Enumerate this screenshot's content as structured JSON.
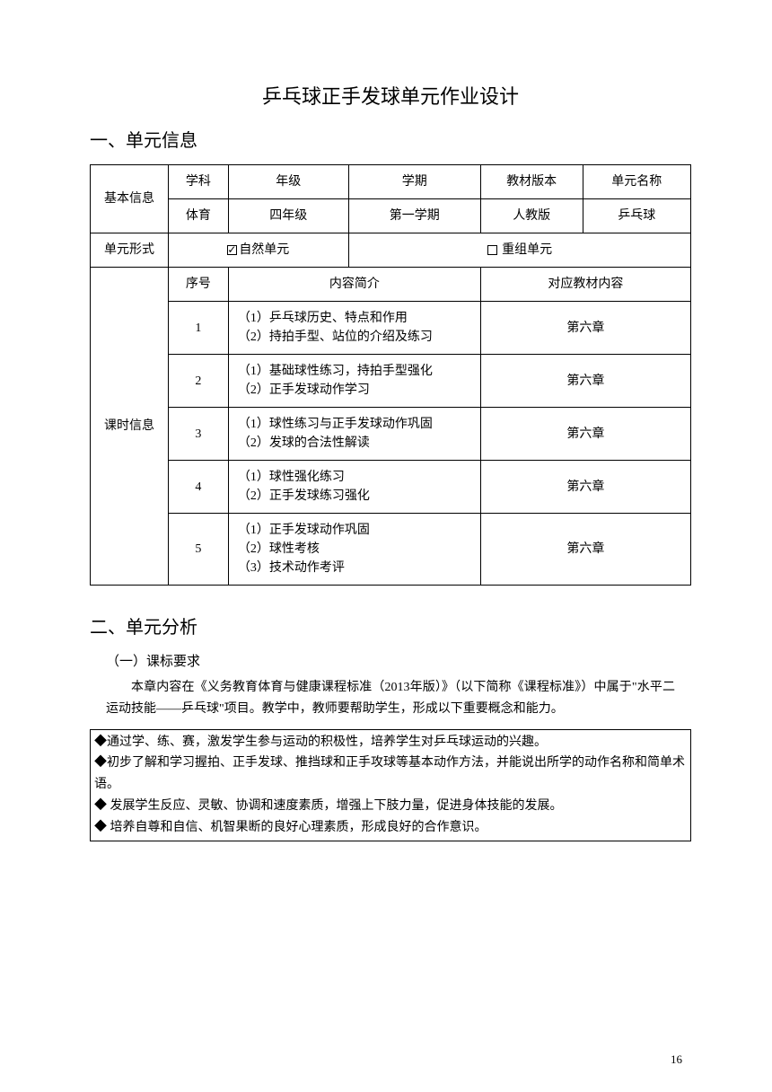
{
  "title": "乒乓球正手发球单元作业设计",
  "section1_heading": "一、单元信息",
  "section2_heading": "二、单元分析",
  "subsection2_1": "（一）课标要求",
  "basic_info": {
    "row_label": "基本信息",
    "headers": {
      "subject": "学科",
      "grade": "年级",
      "term": "学期",
      "textbook": "教材版本",
      "unit_name": "单元名称"
    },
    "values": {
      "subject": "体育",
      "grade": "四年级",
      "term": "第一学期",
      "textbook": "人教版",
      "unit_name": "乒乓球"
    }
  },
  "unit_form": {
    "label": "单元形式",
    "opt1": "自然单元",
    "opt2": "重组单元"
  },
  "lesson_info": {
    "row_label": "课时信息",
    "headers": {
      "seq": "序号",
      "summary": "内容简介",
      "ref": "对应教材内容"
    },
    "rows": [
      {
        "seq": "1",
        "summary": "（1）乒乓球历史、特点和作用\n（2）持拍手型、站位的介绍及练习",
        "ref": "第六章"
      },
      {
        "seq": "2",
        "summary": "（1）基础球性练习，持拍手型强化\n（2）正手发球动作学习",
        "ref": "第六章"
      },
      {
        "seq": "3",
        "summary": "（1）球性练习与正手发球动作巩固\n（2）发球的合法性解读",
        "ref": "第六章"
      },
      {
        "seq": "4",
        "summary": "（1）球性强化练习\n（2）正手发球练习强化",
        "ref": "第六章"
      },
      {
        "seq": "5",
        "summary": "（1）正手发球动作巩固\n（2）球性考核\n（3）技术动作考评",
        "ref": "第六章"
      }
    ]
  },
  "analysis_intro": "本章内容在《义务教育体育与健康课程标准（2013年版）》（以下简称《课程标准》）中属于\"水平二运动技能——乒乓球\"项目。教学中，教师要帮助学生，形成以下重要概念和能力。",
  "bullets": [
    "◆通过学、练、赛，激发学生参与运动的积极性，培养学生对乒乓球运动的兴趣。",
    "◆初步了解和学习握拍、正手发球、推挡球和正手攻球等基本动作方法，并能说出所学的动作名称和简单术语。",
    "◆ 发展学生反应、灵敏、协调和速度素质，增强上下肢力量，促进身体技能的发展。",
    "◆ 培养自尊和自信、机智果断的良好心理素质，形成良好的合作意识。"
  ],
  "page_number": "16",
  "style": {
    "border_color": "#000000",
    "text_color": "#000000",
    "bg_color": "#ffffff"
  }
}
